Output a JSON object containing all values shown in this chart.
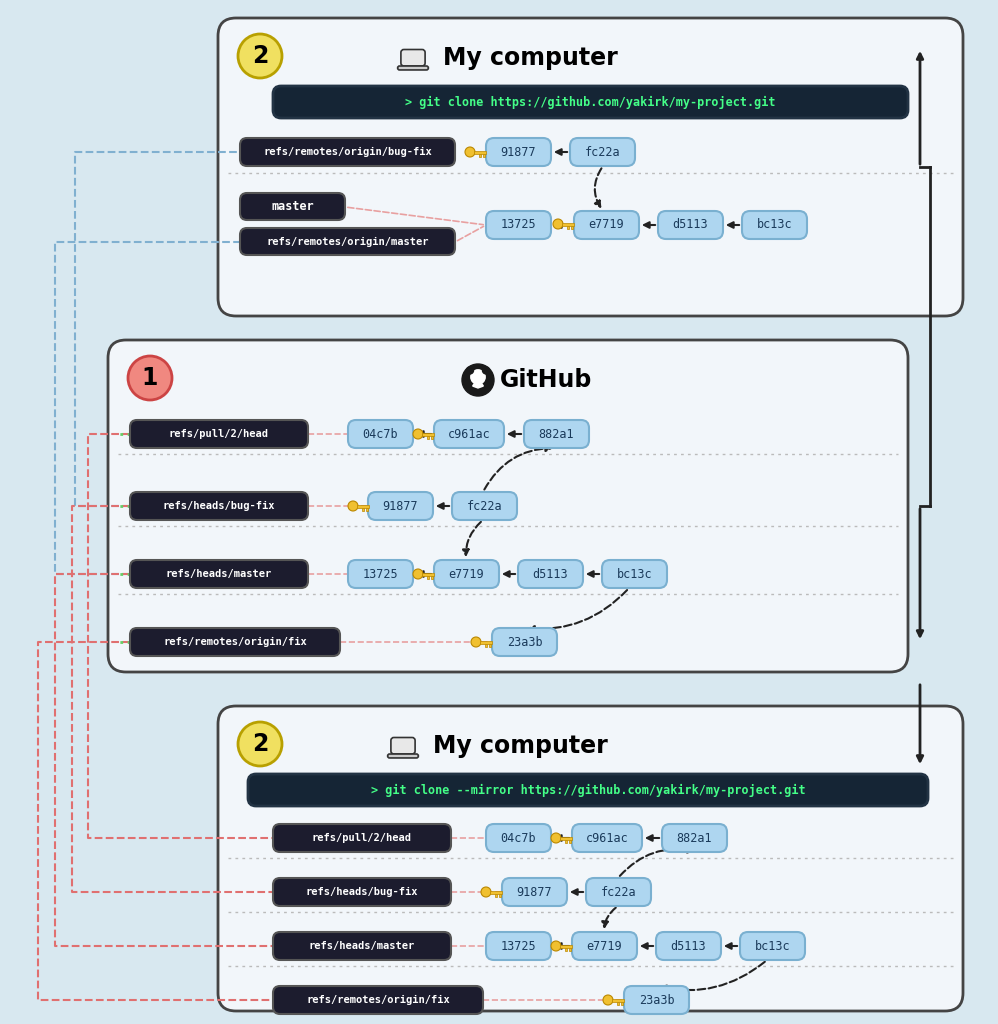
{
  "bg_color": "#d8e8f0",
  "panel_bg": "#f2f6fa",
  "panel_edge": "#444444",
  "dark_box_color": "#1c1c2e",
  "dark_box_text": "#ffffff",
  "commit_box_color": "#aed6f0",
  "commit_box_edge": "#7ab0d0",
  "cmd_bg": "#152535",
  "cmd_text_color": "#44ff88",
  "key_color": "#f0c030",
  "key_edge": "#bb8800",
  "badge1_color": "#f0e060",
  "badge2_color": "#f08880",
  "title1_text": "My computer",
  "title2_text": "GitHub",
  "title3_text": "My computer",
  "cmd1": "> git clone https://github.com/yakirk/my-project.git",
  "cmd3": "> git clone --mirror https://github.com/yakirk/my-project.git",
  "panel1_refs_row1": "refs/remotes/origin/bug-fix",
  "panel1_ref_master": "master",
  "panel1_refs_row2": "refs/remotes/origin/master",
  "panel2_refs": [
    "refs/pull/2/head",
    "refs/heads/bug-fix",
    "refs/heads/master",
    "refs/remotes/origin/fix"
  ],
  "panel3_refs": [
    "refs/pull/2/head",
    "refs/heads/bug-fix",
    "refs/heads/master",
    "refs/remotes/origin/fix"
  ],
  "arrow_dark": "#222222",
  "arrow_pink": "#e8a0a0",
  "arrow_blue": "#80b0d0",
  "arrow_green": "#80c080",
  "arrow_red": "#e07070",
  "sep_color": "#bbbbbb",
  "right_bracket_color": "#222222"
}
